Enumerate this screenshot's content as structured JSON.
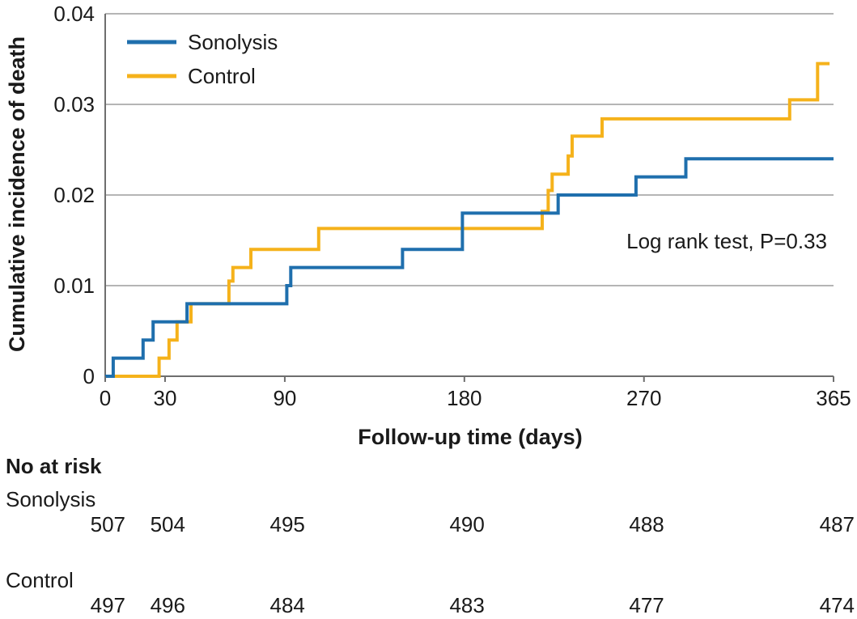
{
  "chart_data": {
    "type": "line",
    "subtype": "step",
    "title": "",
    "xlabel": "Follow-up time (days)",
    "ylabel": "Cumulative incidence of death",
    "xlim": [
      0,
      365
    ],
    "ylim": [
      0,
      0.04
    ],
    "x_ticks": [
      0,
      30,
      90,
      180,
      270,
      365
    ],
    "x_tick_labels": [
      "0",
      "30",
      "90",
      "180",
      "270",
      "365"
    ],
    "y_ticks": [
      0,
      0.01,
      0.02,
      0.03,
      0.04
    ],
    "y_tick_labels": [
      "0",
      "0.01",
      "0.02",
      "0.03",
      "0.04"
    ],
    "grid": "horizontal",
    "legend_position": "top-left",
    "series": [
      {
        "name": "Sonolysis",
        "color": "#1f6fad",
        "points": [
          [
            0,
            0
          ],
          [
            4,
            0
          ],
          [
            4,
            0.002
          ],
          [
            19,
            0.002
          ],
          [
            19,
            0.004
          ],
          [
            24,
            0.004
          ],
          [
            24,
            0.006
          ],
          [
            41,
            0.006
          ],
          [
            41,
            0.008
          ],
          [
            91,
            0.008
          ],
          [
            91,
            0.01
          ],
          [
            93,
            0.01
          ],
          [
            93,
            0.012
          ],
          [
            149,
            0.012
          ],
          [
            149,
            0.014
          ],
          [
            179,
            0.014
          ],
          [
            179,
            0.018
          ],
          [
            227,
            0.018
          ],
          [
            227,
            0.02
          ],
          [
            266,
            0.02
          ],
          [
            266,
            0.022
          ],
          [
            291,
            0.022
          ],
          [
            291,
            0.024
          ],
          [
            365,
            0.024
          ]
        ]
      },
      {
        "name": "Control",
        "color": "#f5b21b",
        "points": [
          [
            0,
            0
          ],
          [
            27,
            0
          ],
          [
            27,
            0.002
          ],
          [
            32,
            0.002
          ],
          [
            32,
            0.004
          ],
          [
            36,
            0.004
          ],
          [
            36,
            0.006
          ],
          [
            43,
            0.006
          ],
          [
            43,
            0.008
          ],
          [
            62,
            0.008
          ],
          [
            62,
            0.0105
          ],
          [
            64,
            0.0105
          ],
          [
            64,
            0.012
          ],
          [
            73,
            0.012
          ],
          [
            73,
            0.014
          ],
          [
            107,
            0.014
          ],
          [
            107,
            0.0163
          ],
          [
            219,
            0.0163
          ],
          [
            219,
            0.0182
          ],
          [
            222,
            0.0182
          ],
          [
            222,
            0.0205
          ],
          [
            224,
            0.0205
          ],
          [
            224,
            0.0223
          ],
          [
            232,
            0.0223
          ],
          [
            232,
            0.0243
          ],
          [
            234,
            0.0243
          ],
          [
            234,
            0.0265
          ],
          [
            249,
            0.0265
          ],
          [
            249,
            0.0284
          ],
          [
            343,
            0.0284
          ],
          [
            343,
            0.0305
          ],
          [
            357,
            0.0305
          ],
          [
            357,
            0.0345
          ],
          [
            363,
            0.0345
          ]
        ]
      }
    ],
    "annotation": "Log rank test, P=0.33",
    "risk_table": {
      "title": "No at risk",
      "time_points": [
        0,
        30,
        90,
        180,
        270,
        365
      ],
      "groups": [
        {
          "name": "Sonolysis",
          "counts": [
            "507",
            "504",
            "495",
            "490",
            "488",
            "487"
          ]
        },
        {
          "name": "Control",
          "counts": [
            "497",
            "496",
            "484",
            "483",
            "477",
            "474"
          ]
        }
      ]
    }
  }
}
